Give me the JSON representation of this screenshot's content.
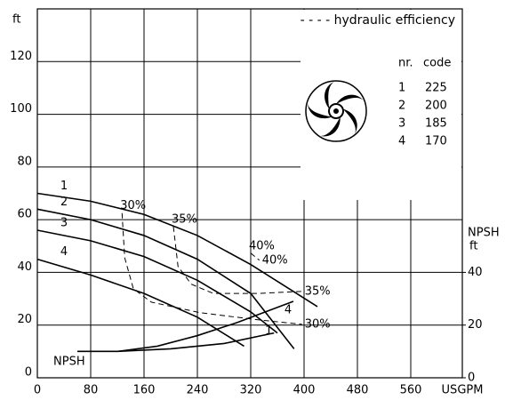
{
  "chart_data": {
    "type": "line",
    "y_label": "ft",
    "x_label": "USGPM",
    "y2_label": [
      "NPSH",
      "ft"
    ],
    "npsh_label": "NPSH",
    "efficiency_legend": "- - - - hydraulic efficiency",
    "impeller_table": {
      "header": [
        "nr.",
        "code"
      ],
      "rows": [
        [
          "1",
          "225"
        ],
        [
          "2",
          "200"
        ],
        [
          "3",
          "185"
        ],
        [
          "4",
          "170"
        ]
      ]
    },
    "xlim": [
      0,
      640
    ],
    "xticks": [
      0,
      80,
      160,
      240,
      320,
      400,
      480,
      560
    ],
    "ylim": [
      0,
      140
    ],
    "yticks": [
      0,
      20,
      40,
      60,
      80,
      100,
      120
    ],
    "y2lim": [
      0,
      140
    ],
    "y2ticks": [
      0,
      20,
      40
    ],
    "grid": true,
    "series": [
      {
        "name": "1",
        "color": "#000000",
        "x": [
          0,
          80,
          160,
          240,
          320,
          420
        ],
        "values": [
          70,
          67,
          62,
          54,
          43,
          27
        ]
      },
      {
        "name": "2",
        "color": "#000000",
        "x": [
          0,
          80,
          160,
          240,
          320,
          385
        ],
        "values": [
          64,
          60,
          54,
          45,
          32,
          11
        ]
      },
      {
        "name": "3",
        "color": "#000000",
        "x": [
          0,
          80,
          160,
          240,
          320,
          360
        ],
        "values": [
          56,
          52,
          46,
          37,
          25,
          17
        ]
      },
      {
        "name": "4",
        "color": "#000000",
        "x": [
          0,
          80,
          160,
          240,
          310
        ],
        "values": [
          45,
          39,
          32,
          23,
          12
        ]
      },
      {
        "name": "1",
        "color": "#000000",
        "axis": "y2",
        "x": [
          60,
          120,
          200,
          280,
          355
        ],
        "values": [
          10,
          10,
          11,
          13,
          17
        ]
      },
      {
        "name": "4",
        "color": "#000000",
        "axis": "y2",
        "x": [
          120,
          180,
          240,
          300,
          384
        ],
        "values": [
          10,
          12,
          16,
          21,
          29
        ]
      },
      {
        "name": "30%",
        "color": "#000000",
        "dashed": true,
        "x": [
          127,
          131,
          144,
          171,
          244,
          331,
          397
        ],
        "values": [
          62.5,
          45.6,
          33.8,
          28.7,
          24.7,
          22,
          20.3
        ]
      },
      {
        "name": "35%",
        "color": "#000000",
        "dashed": true,
        "x": [
          204,
          211,
          231,
          264,
          331,
          397
        ],
        "values": [
          57.4,
          42.2,
          35.5,
          32,
          32,
          32.8
        ]
      },
      {
        "name": "40%",
        "color": "#000000",
        "dashed": true,
        "x": [
          320,
          333
        ],
        "values": [
          47.3,
          44.6
        ]
      }
    ]
  }
}
